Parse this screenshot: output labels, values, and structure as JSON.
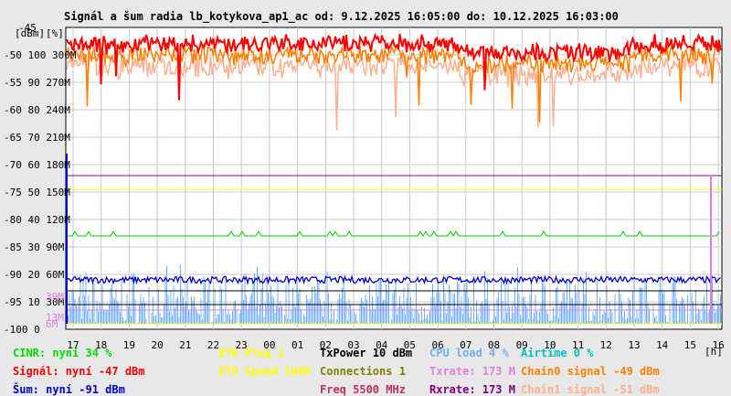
{
  "chart_data": {
    "type": "line",
    "title": "Signál a šum radia lb_kotykova_ap1_ac od: 9.12.2025 16:05:00 do: 10.12.2025 16:03:00",
    "unit_labels": [
      "[dBm]",
      "[%]"
    ],
    "x_unit": "[h]",
    "x_ticks": [
      "17",
      "18",
      "19",
      "20",
      "21",
      "22",
      "23",
      "00",
      "01",
      "02",
      "03",
      "04",
      "05",
      "06",
      "07",
      "08",
      "09",
      "10",
      "11",
      "12",
      "13",
      "14",
      "15",
      "16"
    ],
    "y_ticks": [
      {
        "dbm": "-50",
        "pct": "100",
        "rate": "300M"
      },
      {
        "dbm": "-55",
        "pct": "90",
        "rate": "270M"
      },
      {
        "dbm": "-60",
        "pct": "80",
        "rate": "240M"
      },
      {
        "dbm": "-65",
        "pct": "70",
        "rate": "210M"
      },
      {
        "dbm": "-70",
        "pct": "60",
        "rate": "180M"
      },
      {
        "dbm": "-75",
        "pct": "50",
        "rate": "150M"
      },
      {
        "dbm": "-80",
        "pct": "40",
        "rate": "120M"
      },
      {
        "dbm": "-85",
        "pct": "30",
        "rate": "90M"
      },
      {
        "dbm": "-90",
        "pct": "20",
        "rate": "60M"
      },
      {
        "dbm": "-95",
        "pct": "10",
        "rate": "30M"
      }
    ],
    "y_top_label": "-45",
    "y_bottom_label": "-100 0",
    "side_labels": [
      {
        "text": "39M",
        "color": "#e080e0",
        "at_dbm": -94
      },
      {
        "text": "13M",
        "color": "#e080e0",
        "at_dbm": -97.8
      },
      {
        "text": "6M",
        "color": "#e080e0",
        "at_dbm": -99
      }
    ],
    "ylim_dbm": [
      -100,
      -45
    ],
    "grid": true,
    "series": [
      {
        "name": "Signál",
        "color": "#ff0000",
        "band_dbm": [
          -50.5,
          -45.5
        ],
        "noise_dbm": 1.0
      },
      {
        "name": "Chain0 signal",
        "color": "#ff8000",
        "band_dbm": [
          -52.5,
          -47.5
        ],
        "noise_dbm": 1.0
      },
      {
        "name": "Chain1 signal",
        "color": "#ffb090",
        "band_dbm": [
          -54.5,
          -49.5
        ],
        "noise_dbm": 1.3
      },
      {
        "name": "Šum",
        "color": "#0000cc",
        "baseline_dbm": -91,
        "noise_dbm": 0.6
      },
      {
        "name": "CPU load",
        "color": "#70b0ff",
        "band_dbm": [
          -99,
          -88
        ]
      },
      {
        "name": "CINR",
        "color": "#00cc00",
        "baseline_dbm": -83
      }
    ],
    "reference_lines": [
      {
        "name": "ETH Plug",
        "color": "#ffff00",
        "at_dbm": -74.5
      },
      {
        "name": "Rxrate",
        "color": "#800080",
        "at_dbm": -72
      },
      {
        "name": "Txrate",
        "color": "#e080e0",
        "at_dbm": -96.5
      },
      {
        "name": "ETH Speed",
        "color": "#ffff00",
        "at_dbm": -99
      }
    ],
    "legend": [
      {
        "text": "CINR: nyní 34 %",
        "color": "#00dd00"
      },
      {
        "text": "Signál: nyní -47 dBm",
        "color": "#ff0000"
      },
      {
        "text": "Šum: nyní -91 dBm",
        "color": "#0000cc"
      },
      {
        "text": "ETH Plug 1",
        "color": "#ffff00"
      },
      {
        "text": "ETH Speed 1000",
        "color": "#ffff00"
      },
      {
        "text": "TxPower 10 dBm",
        "color": "#000000"
      },
      {
        "text": "Connections 1",
        "color": "#808000"
      },
      {
        "text": "Freq 5500 MHz",
        "color": "#c03060"
      },
      {
        "text": "CPU load 4 %",
        "color": "#70b0ff"
      },
      {
        "text": "Txrate: 173 M",
        "color": "#e080e0"
      },
      {
        "text": "Rxrate: 173 M",
        "color": "#800080"
      },
      {
        "text": "Airtime 0 %",
        "color": "#00c0c0"
      },
      {
        "text": "Chain0 signal -49 dBm",
        "color": "#ff8000"
      },
      {
        "text": "Chain1 signal -51 dBm",
        "color": "#ffb090"
      }
    ]
  }
}
